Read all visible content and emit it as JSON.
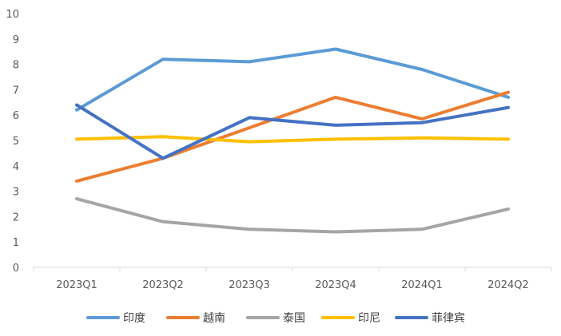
{
  "chart_data": {
    "type": "line",
    "title": "",
    "xlabel": "",
    "ylabel": "",
    "categories": [
      "2023Q1",
      "2023Q2",
      "2023Q3",
      "2023Q4",
      "2024Q1",
      "2024Q2"
    ],
    "ylim": [
      0,
      10
    ],
    "yticks": [
      "0",
      "1",
      "2",
      "3",
      "4",
      "5",
      "6",
      "7",
      "8",
      "9",
      "10"
    ],
    "grid": false,
    "legend_position": "bottom",
    "series": [
      {
        "name": "印度",
        "color": "#5B9BD5",
        "values": [
          6.2,
          8.2,
          8.1,
          8.6,
          7.8,
          6.7
        ]
      },
      {
        "name": "越南",
        "color": "#ED7D31",
        "values": [
          3.4,
          4.3,
          5.5,
          6.7,
          5.85,
          6.9
        ]
      },
      {
        "name": "泰国",
        "color": "#A5A5A5",
        "values": [
          2.7,
          1.8,
          1.5,
          1.4,
          1.5,
          2.3
        ]
      },
      {
        "name": "印尼",
        "color": "#FFC000",
        "values": [
          5.05,
          5.15,
          4.95,
          5.05,
          5.1,
          5.05
        ]
      },
      {
        "name": "菲律宾",
        "color": "#4472C4",
        "values": [
          6.4,
          4.3,
          5.9,
          5.6,
          5.7,
          6.3
        ]
      }
    ]
  }
}
